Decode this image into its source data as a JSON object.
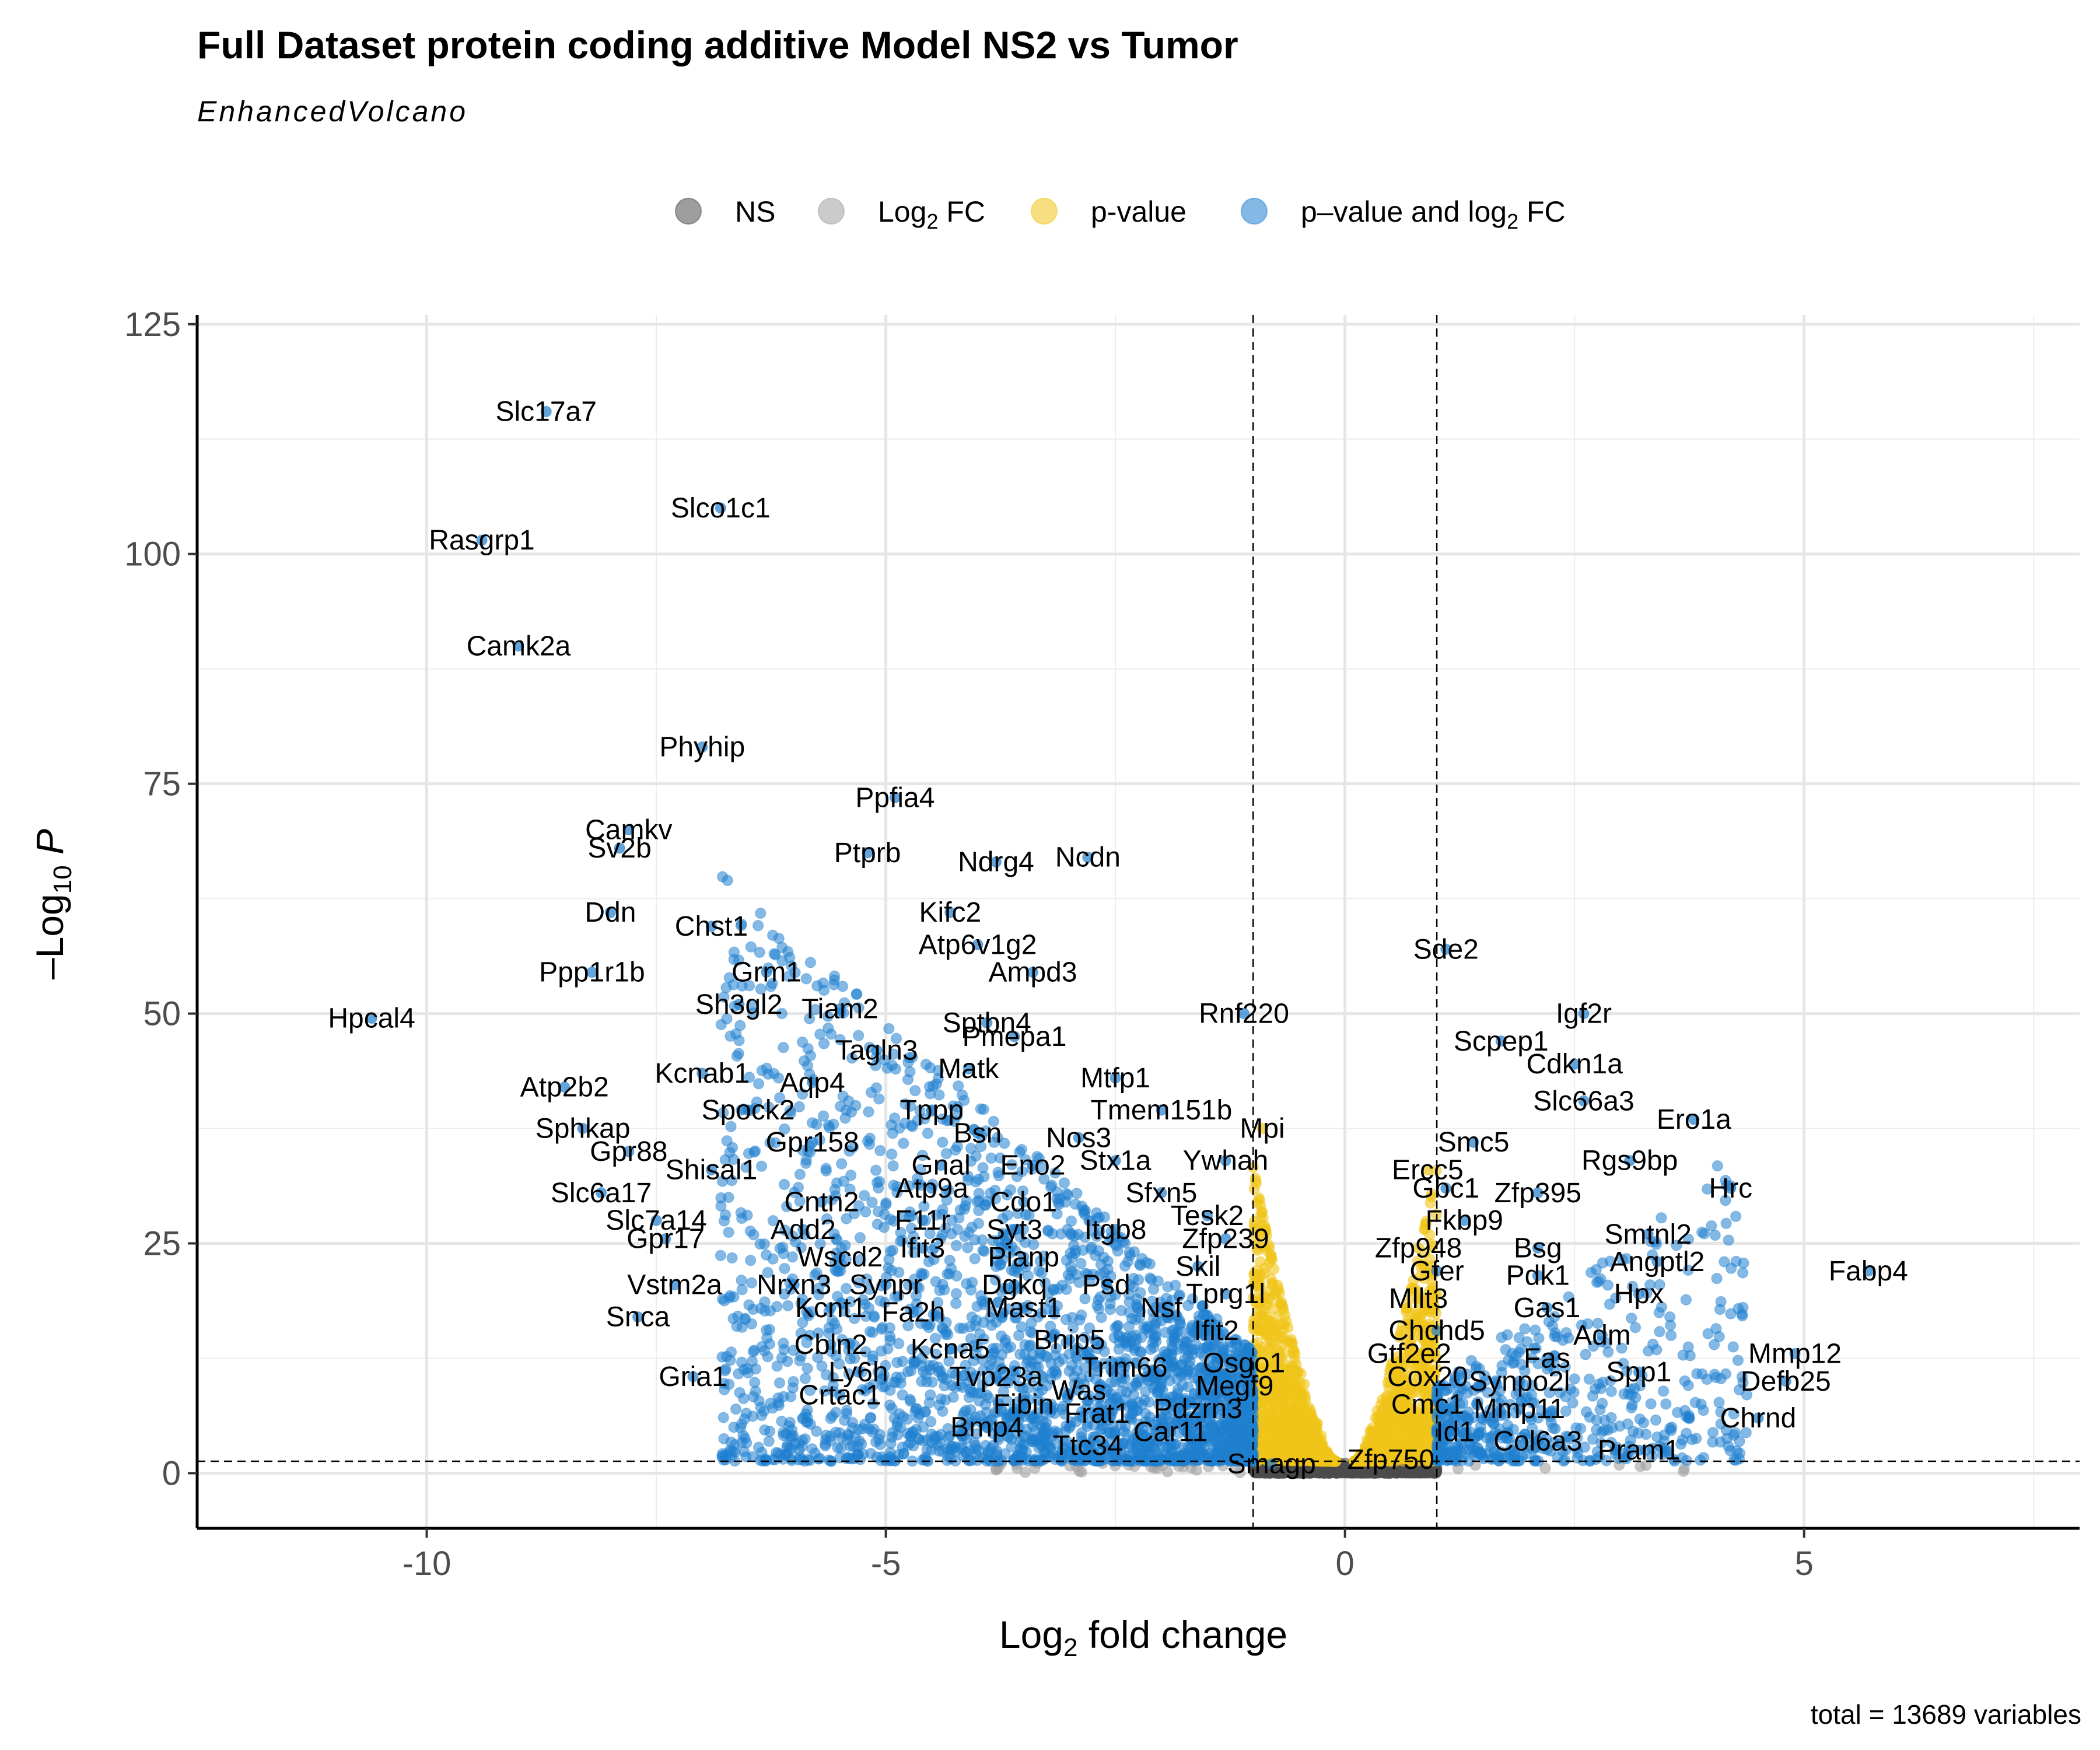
{
  "chart_data": {
    "type": "scatter",
    "title": "Full Dataset protein coding additive Model NS2 vs Tumor",
    "subtitle": "EnhancedVolcano",
    "xlabel": "Log2 fold change",
    "ylabel": "-Log10 P",
    "xlim": [
      -12.5,
      8
    ],
    "ylim": [
      -6,
      126
    ],
    "x_ticks": [
      -10,
      -5,
      0,
      5
    ],
    "x_tick_labels": [
      "-10",
      "-5",
      "0",
      "5"
    ],
    "y_ticks": [
      0,
      25,
      50,
      75,
      100,
      125
    ],
    "y_tick_labels": [
      "0",
      "25",
      "50",
      "75",
      "100",
      "125"
    ],
    "grid": true,
    "legend_position": "top",
    "fc_cutoff": [
      -1,
      1
    ],
    "p_cutoff": 1.3,
    "caption": "total = 13689 variables",
    "legend": [
      {
        "key": "NS",
        "label": "NS",
        "color": "#4d4d4d"
      },
      {
        "key": "FC",
        "label": "Log2 FC",
        "label_main": "Log",
        "label_sub": "2",
        "label_tail": " FC",
        "color": "#a0a0a0"
      },
      {
        "key": "P",
        "label": "p-value",
        "color": "#f0c419"
      },
      {
        "key": "FC_P",
        "label": "p–value and log2 FC",
        "label_main": "p–value and log",
        "label_sub": "2",
        "label_tail": " FC",
        "color": "#1f7fcf"
      }
    ],
    "labeled_genes": [
      {
        "name": "Slc17a7",
        "x": -8.7,
        "y": 115.5
      },
      {
        "name": "Slco1c1",
        "x": -6.8,
        "y": 105
      },
      {
        "name": "Rasgrp1",
        "x": -9.4,
        "y": 101.5
      },
      {
        "name": "Camk2a",
        "x": -9.0,
        "y": 90
      },
      {
        "name": "Phyhip",
        "x": -7.0,
        "y": 79
      },
      {
        "name": "Ppfia4",
        "x": -4.9,
        "y": 73.5
      },
      {
        "name": "Camkv",
        "x": -7.8,
        "y": 70
      },
      {
        "name": "Sv2b",
        "x": -7.9,
        "y": 68
      },
      {
        "name": "Ptprb",
        "x": -5.2,
        "y": 67.5
      },
      {
        "name": "Ndrg4",
        "x": -3.8,
        "y": 66.5
      },
      {
        "name": "Ncdn",
        "x": -2.8,
        "y": 67
      },
      {
        "name": "Ddn",
        "x": -8.0,
        "y": 61
      },
      {
        "name": "Kifc2",
        "x": -4.3,
        "y": 61
      },
      {
        "name": "Chst1",
        "x": -6.9,
        "y": 59.5
      },
      {
        "name": "Atp6v1g2",
        "x": -4.0,
        "y": 57.5
      },
      {
        "name": "Ppp1r1b",
        "x": -8.2,
        "y": 54.5
      },
      {
        "name": "Grm1",
        "x": -6.3,
        "y": 54.5
      },
      {
        "name": "Ampd3",
        "x": -3.4,
        "y": 54.5
      },
      {
        "name": "Sh3gl2",
        "x": -6.6,
        "y": 51
      },
      {
        "name": "Tiam2",
        "x": -5.5,
        "y": 50.5
      },
      {
        "name": "Sptbn4",
        "x": -3.9,
        "y": 49
      },
      {
        "name": "Rnf220",
        "x": -1.1,
        "y": 50
      },
      {
        "name": "Hpcal4",
        "x": -10.6,
        "y": 49.5
      },
      {
        "name": "Pmepa1",
        "x": -3.6,
        "y": 47.5
      },
      {
        "name": "Tagln3",
        "x": -5.1,
        "y": 46
      },
      {
        "name": "Matk",
        "x": -4.1,
        "y": 44
      },
      {
        "name": "Kcnab1",
        "x": -7.0,
        "y": 43.5
      },
      {
        "name": "Aqp4",
        "x": -5.8,
        "y": 42.5
      },
      {
        "name": "Atp2b2",
        "x": -8.5,
        "y": 42
      },
      {
        "name": "Mtfp1",
        "x": -2.5,
        "y": 43
      },
      {
        "name": "Tmem151b",
        "x": -2.0,
        "y": 39.5
      },
      {
        "name": "Spock2",
        "x": -6.5,
        "y": 39.5
      },
      {
        "name": "Tppp",
        "x": -4.5,
        "y": 39.5
      },
      {
        "name": "Sphkap",
        "x": -8.3,
        "y": 37.5
      },
      {
        "name": "Mpi",
        "x": -0.9,
        "y": 37.5
      },
      {
        "name": "Bsn",
        "x": -4.0,
        "y": 37
      },
      {
        "name": "Nos3",
        "x": -2.9,
        "y": 36.5
      },
      {
        "name": "Gpr158",
        "x": -5.8,
        "y": 36
      },
      {
        "name": "Gpr88",
        "x": -7.8,
        "y": 35
      },
      {
        "name": "Stx1a",
        "x": -2.5,
        "y": 34
      },
      {
        "name": "Ywhah",
        "x": -1.3,
        "y": 34
      },
      {
        "name": "Gnal",
        "x": -4.4,
        "y": 33.5
      },
      {
        "name": "Eno2",
        "x": -3.4,
        "y": 33.5
      },
      {
        "name": "Shisal1",
        "x": -6.9,
        "y": 33
      },
      {
        "name": "Slc6a17",
        "x": -8.1,
        "y": 30.5
      },
      {
        "name": "Atp9a",
        "x": -4.5,
        "y": 31
      },
      {
        "name": "Sfxn5",
        "x": -2.0,
        "y": 30.5
      },
      {
        "name": "Cntn2",
        "x": -5.7,
        "y": 29.5
      },
      {
        "name": "Cdo1",
        "x": -3.5,
        "y": 29.5
      },
      {
        "name": "Slc7a14",
        "x": -7.5,
        "y": 27.5
      },
      {
        "name": "F11r",
        "x": -4.6,
        "y": 27.5
      },
      {
        "name": "Tesk2",
        "x": -1.5,
        "y": 28
      },
      {
        "name": "Add2",
        "x": -5.9,
        "y": 26.5
      },
      {
        "name": "Syt3",
        "x": -3.6,
        "y": 26.5
      },
      {
        "name": "Itgb8",
        "x": -2.5,
        "y": 26.5
      },
      {
        "name": "Gpr17",
        "x": -7.4,
        "y": 25.5
      },
      {
        "name": "Ifit3",
        "x": -4.6,
        "y": 24.5
      },
      {
        "name": "Zfp239",
        "x": -1.3,
        "y": 25.5
      },
      {
        "name": "Wscd2",
        "x": -5.5,
        "y": 23.5
      },
      {
        "name": "Pianp",
        "x": -3.5,
        "y": 23.5
      },
      {
        "name": "Skil",
        "x": -1.6,
        "y": 22.5
      },
      {
        "name": "Vstm2a",
        "x": -7.3,
        "y": 20.5
      },
      {
        "name": "Nrxn3",
        "x": -6.0,
        "y": 20.5
      },
      {
        "name": "Synpr",
        "x": -5.0,
        "y": 20.5
      },
      {
        "name": "Dgkq",
        "x": -3.6,
        "y": 20.5
      },
      {
        "name": "Psd",
        "x": -2.6,
        "y": 20.5
      },
      {
        "name": "Tprg1l",
        "x": -1.3,
        "y": 19.5
      },
      {
        "name": "Kcnt1",
        "x": -5.6,
        "y": 18
      },
      {
        "name": "Fa2h",
        "x": -4.7,
        "y": 17.5
      },
      {
        "name": "Mast1",
        "x": -3.5,
        "y": 18
      },
      {
        "name": "Nsf",
        "x": -2.0,
        "y": 18
      },
      {
        "name": "Snca",
        "x": -7.7,
        "y": 17
      },
      {
        "name": "Ifit2",
        "x": -1.4,
        "y": 15.5
      },
      {
        "name": "Cbln2",
        "x": -5.6,
        "y": 14
      },
      {
        "name": "Bnip5",
        "x": -3.0,
        "y": 14.5
      },
      {
        "name": "Kcna5",
        "x": -4.3,
        "y": 13.5
      },
      {
        "name": "Osgo1",
        "x": -1.1,
        "y": 12
      },
      {
        "name": "Trim66",
        "x": -2.4,
        "y": 11.5
      },
      {
        "name": "Ly6h",
        "x": -5.3,
        "y": 11
      },
      {
        "name": "Tvp23a",
        "x": -3.8,
        "y": 10.5
      },
      {
        "name": "Megf9",
        "x": -1.2,
        "y": 9.5
      },
      {
        "name": "Gria1",
        "x": -7.1,
        "y": 10.5
      },
      {
        "name": "Was",
        "x": -2.9,
        "y": 9
      },
      {
        "name": "Crtac1",
        "x": -5.5,
        "y": 8.5
      },
      {
        "name": "Fibin",
        "x": -3.5,
        "y": 7.5
      },
      {
        "name": "Pdzrn3",
        "x": -1.6,
        "y": 7
      },
      {
        "name": "Frat1",
        "x": -2.7,
        "y": 6.5
      },
      {
        "name": "Bmp4",
        "x": -3.9,
        "y": 5
      },
      {
        "name": "Car11",
        "x": -1.9,
        "y": 4.5
      },
      {
        "name": "Ttc34",
        "x": -2.8,
        "y": 3
      },
      {
        "name": "Smagp",
        "x": -0.8,
        "y": 1
      },
      {
        "name": "Sde2",
        "x": 1.1,
        "y": 57
      },
      {
        "name": "Igf2r",
        "x": 2.6,
        "y": 50
      },
      {
        "name": "Scpep1",
        "x": 1.7,
        "y": 47
      },
      {
        "name": "Cdkn1a",
        "x": 2.5,
        "y": 44.5
      },
      {
        "name": "Slc66a3",
        "x": 2.6,
        "y": 40.5
      },
      {
        "name": "Ero1a",
        "x": 3.8,
        "y": 38.5
      },
      {
        "name": "Smc5",
        "x": 1.4,
        "y": 36
      },
      {
        "name": "Rgs9bp",
        "x": 3.1,
        "y": 34
      },
      {
        "name": "Ercc5",
        "x": 0.9,
        "y": 33
      },
      {
        "name": "Hrc",
        "x": 4.2,
        "y": 31
      },
      {
        "name": "Gbc1",
        "x": 1.1,
        "y": 31
      },
      {
        "name": "Zfp395",
        "x": 2.1,
        "y": 30.5
      },
      {
        "name": "Fkbp9",
        "x": 1.3,
        "y": 27.5
      },
      {
        "name": "Smtnl2",
        "x": 3.3,
        "y": 26
      },
      {
        "name": "Zfp948",
        "x": 0.8,
        "y": 24.5
      },
      {
        "name": "Bsg",
        "x": 2.1,
        "y": 24.5
      },
      {
        "name": "Angptl2",
        "x": 3.4,
        "y": 23
      },
      {
        "name": "Fabp4",
        "x": 5.7,
        "y": 22
      },
      {
        "name": "Gfer",
        "x": 1.0,
        "y": 22
      },
      {
        "name": "Pdk1",
        "x": 2.1,
        "y": 21.5
      },
      {
        "name": "Hpx",
        "x": 3.2,
        "y": 19.5
      },
      {
        "name": "Mllt3",
        "x": 0.8,
        "y": 19
      },
      {
        "name": "Gas1",
        "x": 2.2,
        "y": 18
      },
      {
        "name": "Chchd5",
        "x": 1.0,
        "y": 15.5
      },
      {
        "name": "Adm",
        "x": 2.8,
        "y": 15
      },
      {
        "name": "Gtf2e2",
        "x": 0.7,
        "y": 13
      },
      {
        "name": "Fas",
        "x": 2.2,
        "y": 12.5
      },
      {
        "name": "Mmp12",
        "x": 4.9,
        "y": 13
      },
      {
        "name": "Spp1",
        "x": 3.2,
        "y": 11
      },
      {
        "name": "Cox20",
        "x": 0.9,
        "y": 10.5
      },
      {
        "name": "Synpo2l",
        "x": 1.9,
        "y": 10
      },
      {
        "name": "Defb25",
        "x": 4.8,
        "y": 10
      },
      {
        "name": "Cmc1",
        "x": 0.9,
        "y": 7.5
      },
      {
        "name": "Mmp11",
        "x": 1.9,
        "y": 7
      },
      {
        "name": "Chrnd",
        "x": 4.5,
        "y": 6
      },
      {
        "name": "Id1",
        "x": 1.2,
        "y": 4.5
      },
      {
        "name": "Col6a3",
        "x": 2.1,
        "y": 3.5
      },
      {
        "name": "Pram1",
        "x": 3.2,
        "y": 2.5
      },
      {
        "name": "Zfp750",
        "x": 0.5,
        "y": 1.5
      }
    ]
  }
}
